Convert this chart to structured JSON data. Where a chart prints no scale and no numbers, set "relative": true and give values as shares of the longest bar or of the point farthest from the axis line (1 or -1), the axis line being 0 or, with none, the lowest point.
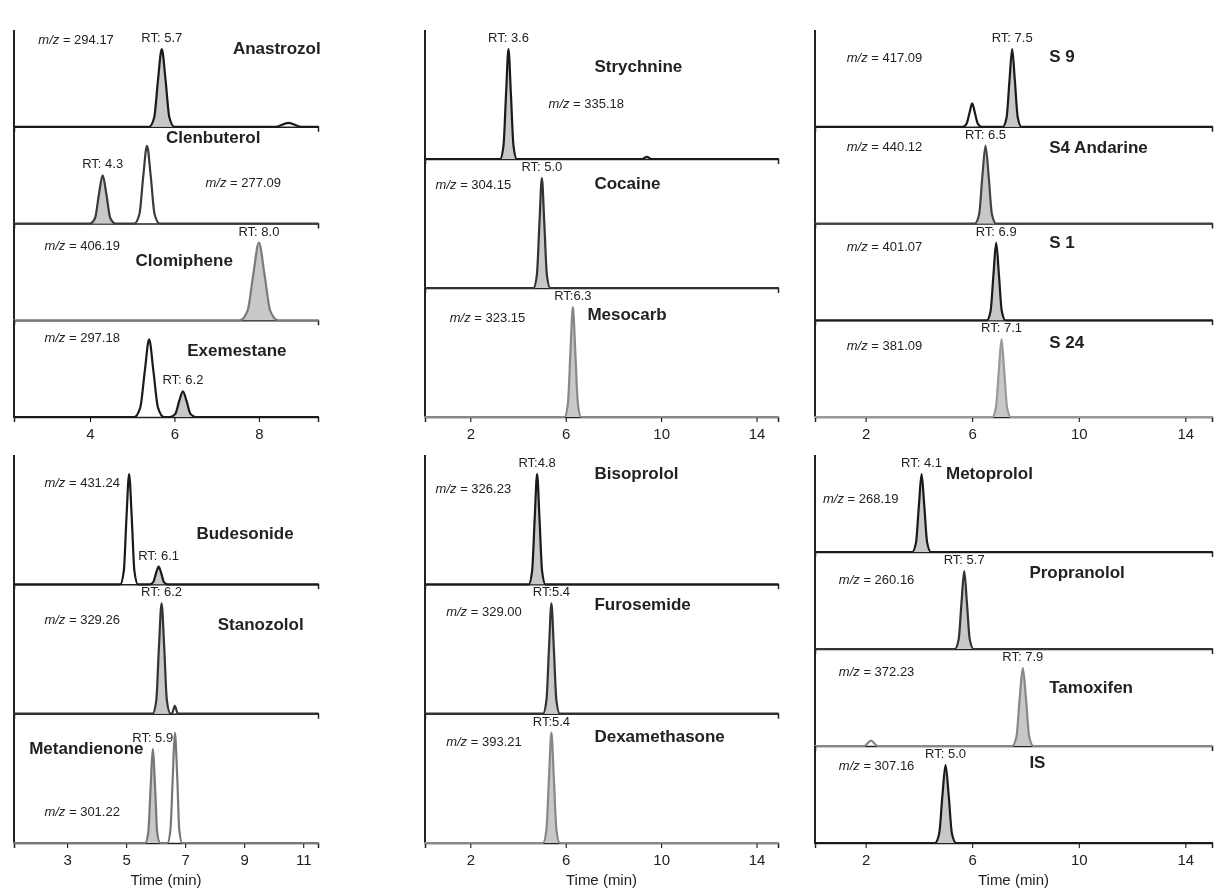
{
  "chart_data": [
    {
      "type": "line",
      "relative": true,
      "title": "Anastrozol",
      "xlim": [
        2.2,
        9.4
      ],
      "tick_labels": false,
      "annotations": [
        "m/z = 294.17",
        {
          "text": "RT: 5.7",
          "x": 5.7,
          "y": 1
        }
      ],
      "series": [
        {
          "type": "area",
          "color": "#c8c8c8",
          "x": [
            5.4,
            5.52,
            5.61,
            5.7,
            5.79,
            5.88,
            6.0
          ],
          "values": [
            0,
            0.12,
            0.6,
            1,
            0.6,
            0.12,
            0
          ]
        },
        {
          "type": "line",
          "color": "#1a1a1a",
          "x": [
            2.2,
            5.4,
            5.52,
            5.61,
            5.7,
            5.79,
            5.88,
            6.0,
            8.4,
            8.7,
            9.0,
            9.4
          ],
          "values": [
            0,
            0,
            0.12,
            0.6,
            1,
            0.6,
            0.12,
            0,
            0,
            0.05,
            0,
            0
          ]
        }
      ]
    },
    {
      "type": "line",
      "relative": true,
      "title": "Clenbuterol",
      "xlim": [
        2.2,
        9.4
      ],
      "tick_labels": false,
      "annotations": [
        "m/z = 277.09",
        {
          "text": "RT: 4.3",
          "x": 4.3,
          "y": 0.62
        }
      ],
      "series": [
        {
          "type": "area",
          "color": "#c8c8c8",
          "x": [
            4.0,
            4.12,
            4.21,
            4.3,
            4.39,
            4.48,
            4.6
          ],
          "values": [
            0,
            0.07,
            0.37,
            0.62,
            0.37,
            0.07,
            0
          ]
        },
        {
          "type": "line",
          "color": "#3a3a3a",
          "x": [
            2.2,
            4.0,
            4.12,
            4.21,
            4.3,
            4.39,
            4.48,
            4.6,
            5.05,
            5.17,
            5.26,
            5.35,
            5.44,
            5.53,
            5.65,
            9.4
          ],
          "values": [
            0,
            0,
            0.07,
            0.37,
            0.62,
            0.37,
            0.07,
            0,
            0,
            0.12,
            0.6,
            1,
            0.6,
            0.12,
            0,
            0
          ]
        }
      ]
    },
    {
      "type": "line",
      "relative": true,
      "title": "Clomiphene",
      "xlim": [
        2.2,
        9.4
      ],
      "tick_labels": false,
      "annotations": [
        "m/z = 406.19",
        {
          "text": "RT: 8.0",
          "x": 8.0,
          "y": 1
        }
      ],
      "series": [
        {
          "type": "area",
          "color": "#c8c8c8",
          "x": [
            7.55,
            7.73,
            7.87,
            8.0,
            8.13,
            8.27,
            8.45
          ],
          "values": [
            0,
            0.12,
            0.6,
            1,
            0.6,
            0.12,
            0
          ]
        },
        {
          "type": "line",
          "color": "#7a7a7a",
          "x": [
            2.2,
            7.55,
            7.73,
            7.87,
            8.0,
            8.13,
            8.27,
            8.45,
            9.4
          ],
          "values": [
            0,
            0,
            0.12,
            0.6,
            1,
            0.6,
            0.12,
            0,
            0
          ]
        }
      ]
    },
    {
      "type": "line",
      "relative": true,
      "title": "Exemestane",
      "xlim": [
        2.2,
        9.4
      ],
      "xticks": [
        4,
        6,
        8
      ],
      "tick_labels": "x",
      "annotations": [
        "m/z = 297.18",
        {
          "text": "RT: 6.2",
          "x": 6.2,
          "y": 0.33
        }
      ],
      "series": [
        {
          "type": "area",
          "color": "#c8c8c8",
          "x": [
            5.9,
            6.02,
            6.11,
            6.2,
            6.29,
            6.38,
            6.5
          ],
          "values": [
            0,
            0.04,
            0.2,
            0.33,
            0.2,
            0.04,
            0
          ]
        },
        {
          "type": "line",
          "color": "#1a1a1a",
          "x": [
            2.2,
            5.05,
            5.19,
            5.3,
            5.4,
            5.5,
            5.61,
            5.75,
            5.9,
            6.02,
            6.11,
            6.2,
            6.29,
            6.38,
            6.5,
            9.4
          ],
          "values": [
            0,
            0,
            0.12,
            0.6,
            1,
            0.6,
            0.12,
            0,
            0,
            0.04,
            0.2,
            0.33,
            0.2,
            0.04,
            0,
            0
          ]
        }
      ]
    },
    {
      "type": "line",
      "relative": true,
      "title": "Budesonide",
      "xlim": [
        1.2,
        11.5
      ],
      "tick_labels": false,
      "annotations": [
        "m/z = 431.24",
        {
          "text": "RT: 6.1",
          "x": 6.1,
          "y": 0.16
        }
      ],
      "series": [
        {
          "type": "area",
          "color": "#c8c8c8",
          "x": [
            5.8,
            5.92,
            6.01,
            6.1,
            6.19,
            6.28,
            6.4
          ],
          "values": [
            0,
            0.02,
            0.1,
            0.16,
            0.1,
            0.02,
            0
          ]
        },
        {
          "type": "line",
          "color": "#1a1a1a",
          "x": [
            1.2,
            4.8,
            4.92,
            5.01,
            5.1,
            5.19,
            5.28,
            5.4,
            5.8,
            5.92,
            6.01,
            6.1,
            6.19,
            6.28,
            6.4,
            11.5
          ],
          "values": [
            0,
            0,
            0.12,
            0.6,
            1,
            0.6,
            0.12,
            0,
            0,
            0.02,
            0.1,
            0.16,
            0.1,
            0.02,
            0,
            0
          ]
        }
      ]
    },
    {
      "type": "line",
      "relative": true,
      "title": "Stanozolol",
      "xlim": [
        1.2,
        11.5
      ],
      "tick_labels": false,
      "annotations": [
        "m/z = 329.26",
        {
          "text": "RT: 6.2",
          "x": 6.2,
          "y": 1
        }
      ],
      "series": [
        {
          "type": "area",
          "color": "#c8c8c8",
          "x": [
            5.9,
            6.02,
            6.11,
            6.2,
            6.29,
            6.38,
            6.5
          ],
          "values": [
            0,
            0.12,
            0.6,
            1,
            0.6,
            0.12,
            0
          ]
        },
        {
          "type": "line",
          "color": "#333333",
          "x": [
            1.2,
            5.9,
            6.02,
            6.11,
            6.2,
            6.29,
            6.38,
            6.5,
            6.55,
            6.65,
            6.75,
            11.5
          ],
          "values": [
            0,
            0,
            0.12,
            0.6,
            1,
            0.6,
            0.12,
            0,
            0,
            0.07,
            0,
            0
          ]
        }
      ]
    },
    {
      "type": "line",
      "relative": true,
      "title": "Metandienone",
      "xlim": [
        1.2,
        11.5
      ],
      "xticks": [
        3,
        5,
        7,
        9,
        11
      ],
      "tick_labels": "x",
      "xlabel": "Time (min)",
      "annotations": [
        "m/z = 301.22",
        {
          "text": "RT: 5.9",
          "x": 5.9,
          "y": 0.85
        }
      ],
      "series": [
        {
          "type": "area",
          "color": "#c8c8c8",
          "x": [
            5.65,
            5.75,
            5.83,
            5.9,
            5.98,
            6.05,
            6.15
          ],
          "values": [
            0,
            0.1,
            0.51,
            0.85,
            0.51,
            0.1,
            0
          ]
        },
        {
          "type": "line",
          "color": "#777777",
          "x": [
            1.2,
            5.65,
            5.75,
            5.83,
            5.9,
            5.98,
            6.05,
            6.15,
            6.4,
            6.5,
            6.58,
            6.65,
            6.73,
            6.8,
            6.9,
            11.5
          ],
          "values": [
            0,
            0,
            0.1,
            0.51,
            0.85,
            0.51,
            0.1,
            0,
            0,
            0.12,
            0.6,
            1,
            0.6,
            0.12,
            0,
            0
          ]
        }
      ]
    },
    {
      "type": "line",
      "relative": true,
      "title": "Strychnine",
      "xlim": [
        0.1,
        14.9
      ],
      "tick_labels": false,
      "annotations": [
        "m/z = 335.18",
        {
          "text": "RT: 3.6",
          "x": 3.6,
          "y": 1
        }
      ],
      "series": [
        {
          "type": "area",
          "color": "#c8c8c8",
          "x": [
            3.25,
            3.39,
            3.5,
            3.6,
            3.7,
            3.81,
            3.95
          ],
          "values": [
            0,
            0.12,
            0.6,
            1,
            0.6,
            0.12,
            0
          ]
        },
        {
          "type": "line",
          "color": "#1a1a1a",
          "x": [
            0.1,
            3.25,
            3.39,
            3.5,
            3.6,
            3.7,
            3.81,
            3.95,
            9.2,
            9.4,
            9.6,
            14.9
          ],
          "values": [
            0,
            0,
            0.12,
            0.6,
            1,
            0.6,
            0.12,
            0,
            0,
            0.02,
            0,
            0
          ]
        }
      ]
    },
    {
      "type": "line",
      "relative": true,
      "title": "Cocaine",
      "xlim": [
        0.1,
        14.9
      ],
      "tick_labels": false,
      "annotations": [
        "m/z = 304.15",
        {
          "text": "RT: 5.0",
          "x": 5.0,
          "y": 1
        }
      ],
      "series": [
        {
          "type": "area",
          "color": "#c8c8c8",
          "x": [
            4.65,
            4.79,
            4.9,
            5.0,
            5.1,
            5.21,
            5.35
          ],
          "values": [
            0,
            0.12,
            0.6,
            1,
            0.6,
            0.12,
            0
          ]
        },
        {
          "type": "line",
          "color": "#333333",
          "x": [
            0.1,
            4.65,
            4.79,
            4.9,
            5.0,
            5.1,
            5.21,
            5.35,
            14.9
          ],
          "values": [
            0,
            0,
            0.12,
            0.6,
            1,
            0.6,
            0.12,
            0,
            0
          ]
        }
      ]
    },
    {
      "type": "line",
      "relative": true,
      "title": "Mesocarb",
      "xlim": [
        0.1,
        14.9
      ],
      "xticks": [
        2,
        6,
        10,
        14
      ],
      "tick_labels": "x",
      "annotations": [
        "m/z = 323.15",
        {
          "text": "RT:6.3",
          "x": 6.3,
          "y": 1
        }
      ],
      "series": [
        {
          "type": "area",
          "color": "#c8c8c8",
          "x": [
            5.95,
            6.09,
            6.2,
            6.3,
            6.4,
            6.51,
            6.65
          ],
          "values": [
            0,
            0.12,
            0.6,
            1,
            0.6,
            0.12,
            0
          ]
        },
        {
          "type": "line",
          "color": "#888888",
          "x": [
            0.1,
            5.95,
            6.09,
            6.2,
            6.3,
            6.4,
            6.51,
            6.65,
            14.9
          ],
          "values": [
            0,
            0,
            0.12,
            0.6,
            1,
            0.6,
            0.12,
            0,
            0
          ]
        }
      ]
    },
    {
      "type": "line",
      "relative": true,
      "title": "Bisoprolol",
      "xlim": [
        0.1,
        14.9
      ],
      "tick_labels": false,
      "annotations": [
        "m/z = 326.23",
        {
          "text": "RT:4.8",
          "x": 4.8,
          "y": 1
        }
      ],
      "series": [
        {
          "type": "area",
          "color": "#c8c8c8",
          "x": [
            4.45,
            4.59,
            4.7,
            4.8,
            4.9,
            5.01,
            5.15
          ],
          "values": [
            0,
            0.12,
            0.6,
            1,
            0.6,
            0.12,
            0
          ]
        },
        {
          "type": "line",
          "color": "#1a1a1a",
          "x": [
            0.1,
            4.45,
            4.59,
            4.7,
            4.8,
            4.9,
            5.01,
            5.15,
            14.9
          ],
          "values": [
            0,
            0,
            0.12,
            0.6,
            1,
            0.6,
            0.12,
            0,
            0
          ]
        }
      ]
    },
    {
      "type": "line",
      "relative": true,
      "title": "Furosemide",
      "xlim": [
        0.1,
        14.9
      ],
      "tick_labels": false,
      "annotations": [
        "m/z = 329.00",
        {
          "text": "RT:5.4",
          "x": 5.4,
          "y": 1
        }
      ],
      "series": [
        {
          "type": "area",
          "color": "#c8c8c8",
          "x": [
            5.05,
            5.19,
            5.3,
            5.4,
            5.5,
            5.61,
            5.75
          ],
          "values": [
            0,
            0.12,
            0.6,
            1,
            0.6,
            0.12,
            0
          ]
        },
        {
          "type": "line",
          "color": "#333333",
          "x": [
            0.1,
            5.05,
            5.19,
            5.3,
            5.4,
            5.5,
            5.61,
            5.75,
            14.9
          ],
          "values": [
            0,
            0,
            0.12,
            0.6,
            1,
            0.6,
            0.12,
            0,
            0
          ]
        }
      ]
    },
    {
      "type": "line",
      "relative": true,
      "title": "Dexamethasone",
      "xlim": [
        0.1,
        14.9
      ],
      "xticks": [
        2,
        6,
        10,
        14
      ],
      "tick_labels": "x",
      "xlabel": "Time (min)",
      "annotations": [
        "m/z = 393.21",
        {
          "text": "RT:5.4",
          "x": 5.4,
          "y": 1
        }
      ],
      "series": [
        {
          "type": "area",
          "color": "#c8c8c8",
          "x": [
            5.05,
            5.19,
            5.3,
            5.4,
            5.5,
            5.61,
            5.75
          ],
          "values": [
            0,
            0.12,
            0.6,
            1,
            0.6,
            0.12,
            0
          ]
        },
        {
          "type": "line",
          "color": "#888888",
          "x": [
            0.1,
            5.05,
            5.19,
            5.3,
            5.4,
            5.5,
            5.61,
            5.75,
            14.9
          ],
          "values": [
            0,
            0,
            0.12,
            0.6,
            1,
            0.6,
            0.12,
            0,
            0
          ]
        }
      ]
    },
    {
      "type": "line",
      "relative": true,
      "title": "S 9",
      "xlim": [
        0.1,
        15
      ],
      "tick_labels": false,
      "annotations": [
        "m/z = 417.09",
        {
          "text": "RT: 7.5",
          "x": 7.5,
          "y": 1
        }
      ],
      "series": [
        {
          "type": "area",
          "color": "#c8c8c8",
          "x": [
            7.15,
            7.29,
            7.4,
            7.5,
            7.6,
            7.71,
            7.85
          ],
          "values": [
            0,
            0.12,
            0.6,
            1,
            0.6,
            0.12,
            0
          ]
        },
        {
          "type": "line",
          "color": "#1a1a1a",
          "x": [
            0.1,
            5.65,
            5.79,
            5.9,
            6.0,
            6.1,
            6.21,
            6.35,
            7.15,
            7.29,
            7.4,
            7.5,
            7.6,
            7.71,
            7.85,
            15
          ],
          "values": [
            0,
            0,
            0.04,
            0.18,
            0.3,
            0.18,
            0.04,
            0,
            0,
            0.12,
            0.6,
            1,
            0.6,
            0.12,
            0,
            0
          ]
        }
      ]
    },
    {
      "type": "line",
      "relative": true,
      "title": "S4 Andarine",
      "xlim": [
        0.1,
        15
      ],
      "tick_labels": false,
      "annotations": [
        "m/z = 440.12",
        {
          "text": "RT: 6.5",
          "x": 6.5,
          "y": 1
        }
      ],
      "series": [
        {
          "type": "area",
          "color": "#c8c8c8",
          "x": [
            6.1,
            6.26,
            6.38,
            6.5,
            6.62,
            6.74,
            6.9
          ],
          "values": [
            0,
            0.12,
            0.6,
            1,
            0.6,
            0.12,
            0
          ]
        },
        {
          "type": "line",
          "color": "#444444",
          "x": [
            0.1,
            6.1,
            6.26,
            6.38,
            6.5,
            6.62,
            6.74,
            6.9,
            15
          ],
          "values": [
            0,
            0,
            0.12,
            0.6,
            1,
            0.6,
            0.12,
            0,
            0
          ]
        }
      ]
    },
    {
      "type": "line",
      "relative": true,
      "title": "S 1",
      "xlim": [
        0.1,
        15
      ],
      "tick_labels": false,
      "annotations": [
        "m/z = 401.07",
        {
          "text": "RT: 6.9",
          "x": 6.9,
          "y": 1
        }
      ],
      "series": [
        {
          "type": "area",
          "color": "#c8c8c8",
          "x": [
            6.55,
            6.69,
            6.8,
            6.9,
            7.0,
            7.11,
            7.25
          ],
          "values": [
            0,
            0.12,
            0.6,
            1,
            0.6,
            0.12,
            0
          ]
        },
        {
          "type": "line",
          "color": "#1a1a1a",
          "x": [
            0.1,
            6.55,
            6.69,
            6.8,
            6.9,
            7.0,
            7.11,
            7.25,
            15
          ],
          "values": [
            0,
            0,
            0.12,
            0.6,
            1,
            0.6,
            0.12,
            0,
            0
          ]
        }
      ]
    },
    {
      "type": "line",
      "relative": true,
      "title": "S 24",
      "xlim": [
        0.1,
        15
      ],
      "xticks": [
        2,
        6,
        10,
        14
      ],
      "tick_labels": "x",
      "annotations": [
        "m/z = 381.09",
        {
          "text": "RT: 7.1",
          "x": 7.1,
          "y": 1
        }
      ],
      "series": [
        {
          "type": "area",
          "color": "#c8c8c8",
          "x": [
            6.75,
            6.89,
            7.0,
            7.1,
            7.2,
            7.31,
            7.45
          ],
          "values": [
            0,
            0.12,
            0.6,
            1,
            0.6,
            0.12,
            0
          ]
        },
        {
          "type": "line",
          "color": "#999999",
          "x": [
            0.1,
            6.75,
            6.89,
            7.0,
            7.1,
            7.2,
            7.31,
            7.45,
            15
          ],
          "values": [
            0,
            0,
            0.12,
            0.6,
            1,
            0.6,
            0.12,
            0,
            0
          ]
        }
      ]
    },
    {
      "type": "line",
      "relative": true,
      "title": "Metoprolol",
      "xlim": [
        0.1,
        15
      ],
      "tick_labels": false,
      "annotations": [
        "m/z = 268.19",
        {
          "text": "RT: 4.1",
          "x": 4.1,
          "y": 1
        }
      ],
      "series": [
        {
          "type": "area",
          "color": "#c8c8c8",
          "x": [
            3.75,
            3.89,
            4.0,
            4.1,
            4.2,
            4.31,
            4.45
          ],
          "values": [
            0,
            0.12,
            0.6,
            1,
            0.6,
            0.12,
            0
          ]
        },
        {
          "type": "line",
          "color": "#1a1a1a",
          "x": [
            0.1,
            3.75,
            3.89,
            4.0,
            4.1,
            4.2,
            4.31,
            4.45,
            15
          ],
          "values": [
            0,
            0,
            0.12,
            0.6,
            1,
            0.6,
            0.12,
            0,
            0
          ]
        }
      ]
    },
    {
      "type": "line",
      "relative": true,
      "title": "Propranolol",
      "xlim": [
        0.1,
        15
      ],
      "tick_labels": false,
      "annotations": [
        "m/z = 260.16",
        {
          "text": "RT: 5.7",
          "x": 5.7,
          "y": 1
        }
      ],
      "series": [
        {
          "type": "area",
          "color": "#c8c8c8",
          "x": [
            5.35,
            5.49,
            5.6,
            5.7,
            5.8,
            5.91,
            6.05
          ],
          "values": [
            0,
            0.12,
            0.6,
            1,
            0.6,
            0.12,
            0
          ]
        },
        {
          "type": "line",
          "color": "#333333",
          "x": [
            0.1,
            5.35,
            5.49,
            5.6,
            5.7,
            5.8,
            5.91,
            6.05,
            15
          ],
          "values": [
            0,
            0,
            0.12,
            0.6,
            1,
            0.6,
            0.12,
            0,
            0
          ]
        }
      ]
    },
    {
      "type": "line",
      "relative": true,
      "title": "Tamoxifen",
      "xlim": [
        0.1,
        15
      ],
      "tick_labels": false,
      "annotations": [
        "m/z = 372.23",
        {
          "text": "RT: 7.9",
          "x": 7.9,
          "y": 1
        }
      ],
      "series": [
        {
          "type": "area",
          "color": "#c8c8c8",
          "x": [
            7.5,
            7.66,
            7.78,
            7.9,
            8.02,
            8.14,
            8.3
          ],
          "values": [
            0,
            0.12,
            0.6,
            1,
            0.6,
            0.12,
            0
          ]
        },
        {
          "type": "line",
          "color": "#888888",
          "x": [
            0.1,
            1.95,
            2.2,
            2.45,
            7.5,
            7.66,
            7.78,
            7.9,
            8.02,
            8.14,
            8.3,
            15
          ],
          "values": [
            0,
            0,
            0.07,
            0,
            0,
            0.12,
            0.6,
            1,
            0.6,
            0.12,
            0,
            0
          ]
        }
      ]
    },
    {
      "type": "line",
      "relative": true,
      "title": "IS",
      "xlim": [
        0.1,
        15
      ],
      "xticks": [
        2,
        6,
        10,
        14
      ],
      "tick_labels": "x",
      "xlabel": "Time (min)",
      "annotations": [
        "m/z = 307.16",
        {
          "text": "RT: 5.0",
          "x": 5.0,
          "y": 1
        }
      ],
      "series": [
        {
          "type": "area",
          "color": "#c8c8c8",
          "x": [
            4.6,
            4.76,
            4.88,
            5.0,
            5.12,
            5.24,
            5.4
          ],
          "values": [
            0,
            0.12,
            0.6,
            1,
            0.6,
            0.12,
            0
          ]
        },
        {
          "type": "line",
          "color": "#1a1a1a",
          "x": [
            0.1,
            4.6,
            4.76,
            4.88,
            5.0,
            5.12,
            5.24,
            5.4,
            15
          ],
          "values": [
            0,
            0,
            0.12,
            0.6,
            1,
            0.6,
            0.12,
            0,
            0
          ]
        }
      ]
    }
  ]
}
